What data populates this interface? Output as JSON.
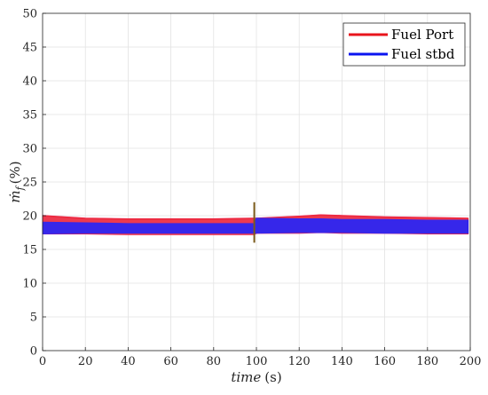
{
  "chart_data": {
    "type": "line",
    "title": "",
    "xlabel": {
      "main": "time",
      "unit": "(s)"
    },
    "ylabel": {
      "symbol": "ṁ",
      "subscript": "f",
      "unit": "(%)"
    },
    "xlim": [
      0,
      200
    ],
    "ylim": [
      0,
      50
    ],
    "x_ticks": [
      "0",
      "20",
      "40",
      "60",
      "80",
      "100",
      "120",
      "140",
      "160",
      "180",
      "200"
    ],
    "y_ticks": [
      "0",
      "5",
      "10",
      "15",
      "20",
      "25",
      "30",
      "35",
      "40",
      "45",
      "50"
    ],
    "grid": true,
    "legend_position": "top-right",
    "series": [
      {
        "name": "Fuel Port",
        "color": "#e8141c",
        "x": [
          0,
          20,
          40,
          60,
          80,
          99,
          100,
          120,
          130,
          140,
          160,
          180,
          199
        ],
        "y_high": [
          20.0,
          19.6,
          19.5,
          19.5,
          19.5,
          19.6,
          19.6,
          19.9,
          20.1,
          20.0,
          19.8,
          19.7,
          19.6
        ],
        "y_low": [
          17.3,
          17.3,
          17.2,
          17.2,
          17.2,
          17.2,
          17.4,
          17.4,
          17.5,
          17.4,
          17.4,
          17.3,
          17.3
        ]
      },
      {
        "name": "Fuel stbd",
        "color": "#0a14f0",
        "x": [
          0,
          20,
          40,
          60,
          80,
          99,
          100,
          120,
          130,
          140,
          160,
          180,
          199
        ],
        "y_high": [
          19.0,
          18.9,
          18.8,
          18.8,
          18.8,
          18.8,
          19.6,
          19.5,
          19.5,
          19.4,
          19.4,
          19.3,
          19.3
        ],
        "y_low": [
          17.3,
          17.4,
          17.4,
          17.4,
          17.4,
          17.4,
          17.4,
          17.5,
          17.5,
          17.5,
          17.4,
          17.4,
          17.4
        ]
      }
    ],
    "transient": {
      "x": 99,
      "y_min": 16.0,
      "y_max": 22.0,
      "color": "#7a5a1a"
    }
  }
}
